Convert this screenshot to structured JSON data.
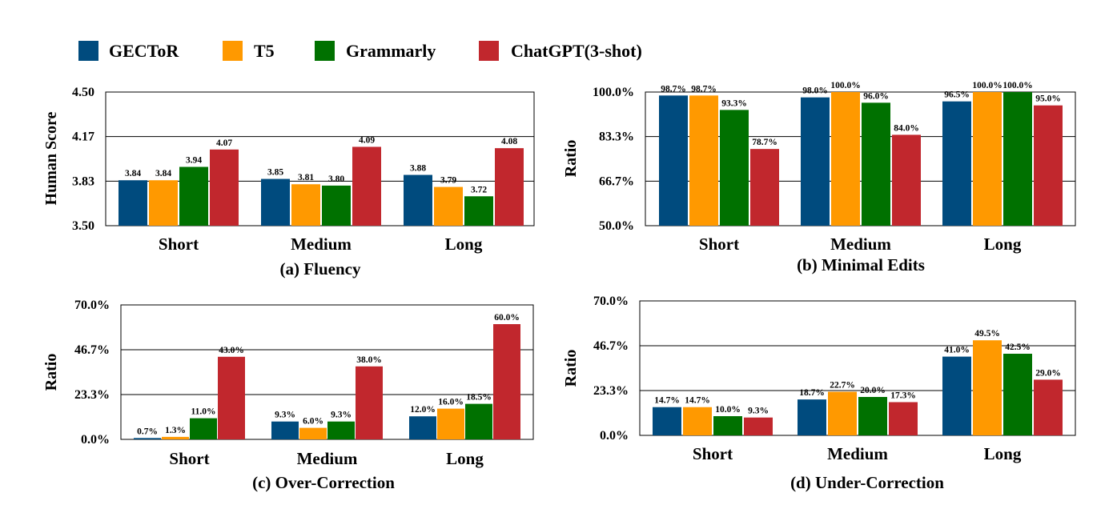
{
  "colors": {
    "GECToR": "#004b7e",
    "T5": "#ff9900",
    "Grammarly": "#007100",
    "ChatGPT(3-shot)": "#c1272d"
  },
  "legend": [
    "GECToR",
    "T5",
    "Grammarly",
    "ChatGPT(3-shot)"
  ],
  "chart_data": [
    {
      "type": "bar",
      "title": "(a) Fluency",
      "ylabel": "Human Score",
      "categories": [
        "Short",
        "Medium",
        "Long"
      ],
      "ylim": [
        3.5,
        4.5
      ],
      "yticks": [
        "3.50",
        "3.83",
        "4.17",
        "4.50"
      ],
      "grid": true,
      "series": [
        {
          "name": "GECToR",
          "values": [
            3.84,
            3.85,
            3.88
          ],
          "labels": [
            "3.84",
            "3.85",
            "3.88"
          ]
        },
        {
          "name": "T5",
          "values": [
            3.84,
            3.81,
            3.79
          ],
          "labels": [
            "3.84",
            "3.81",
            "3.79"
          ]
        },
        {
          "name": "Grammarly",
          "values": [
            3.94,
            3.8,
            3.72
          ],
          "labels": [
            "3.94",
            "3.80",
            "3.72"
          ]
        },
        {
          "name": "ChatGPT(3-shot)",
          "values": [
            4.07,
            4.09,
            4.08
          ],
          "labels": [
            "4.07",
            "4.09",
            "4.08"
          ]
        }
      ]
    },
    {
      "type": "bar",
      "title": "(b) Minimal Edits",
      "ylabel": "Ratio",
      "categories": [
        "Short",
        "Medium",
        "Long"
      ],
      "ylim": [
        50,
        100
      ],
      "yticks": [
        "50.0%",
        "66.7%",
        "83.3%",
        "100.0%"
      ],
      "grid": true,
      "series": [
        {
          "name": "GECToR",
          "values": [
            98.7,
            98.0,
            96.5
          ],
          "labels": [
            "98.7%",
            "98.0%",
            "96.5%"
          ]
        },
        {
          "name": "T5",
          "values": [
            98.7,
            100.0,
            100.0
          ],
          "labels": [
            "98.7%",
            "100.0%",
            "100.0%"
          ]
        },
        {
          "name": "Grammarly",
          "values": [
            93.3,
            96.0,
            100.0
          ],
          "labels": [
            "93.3%",
            "96.0%",
            "100.0%"
          ]
        },
        {
          "name": "ChatGPT(3-shot)",
          "values": [
            78.7,
            84.0,
            95.0
          ],
          "labels": [
            "78.7%",
            "84.0%",
            "95.0%"
          ]
        }
      ]
    },
    {
      "type": "bar",
      "title": "(c) Over-Correction",
      "ylabel": "Ratio",
      "categories": [
        "Short",
        "Medium",
        "Long"
      ],
      "ylim": [
        0,
        70
      ],
      "yticks": [
        "0.0%",
        "23.3%",
        "46.7%",
        "70.0%"
      ],
      "grid": true,
      "series": [
        {
          "name": "GECToR",
          "values": [
            0.7,
            9.3,
            12.0
          ],
          "labels": [
            "0.7%",
            "9.3%",
            "12.0%"
          ]
        },
        {
          "name": "T5",
          "values": [
            1.3,
            6.0,
            16.0
          ],
          "labels": [
            "1.3%",
            "6.0%",
            "16.0%"
          ]
        },
        {
          "name": "Grammarly",
          "values": [
            11.0,
            9.3,
            18.5
          ],
          "labels": [
            "11.0%",
            "9.3%",
            "18.5%"
          ]
        },
        {
          "name": "ChatGPT(3-shot)",
          "values": [
            43.0,
            38.0,
            60.0
          ],
          "labels": [
            "43.0%",
            "38.0%",
            "60.0%"
          ]
        }
      ]
    },
    {
      "type": "bar",
      "title": "(d) Under-Correction",
      "ylabel": "Ratio",
      "categories": [
        "Short",
        "Medium",
        "Long"
      ],
      "ylim": [
        0,
        70
      ],
      "yticks": [
        "0.0%",
        "23.3%",
        "46.7%",
        "70.0%"
      ],
      "grid": true,
      "series": [
        {
          "name": "GECToR",
          "values": [
            14.7,
            18.7,
            41.0
          ],
          "labels": [
            "14.7%",
            "18.7%",
            "41.0%"
          ]
        },
        {
          "name": "T5",
          "values": [
            14.7,
            22.7,
            49.5
          ],
          "labels": [
            "14.7%",
            "22.7%",
            "49.5%"
          ]
        },
        {
          "name": "Grammarly",
          "values": [
            10.0,
            20.0,
            42.5
          ],
          "labels": [
            "10.0%",
            "20.0%",
            "42.5%"
          ]
        },
        {
          "name": "ChatGPT(3-shot)",
          "values": [
            9.3,
            17.3,
            29.0
          ],
          "labels": [
            "9.3%",
            "17.3%",
            "29.0%"
          ]
        }
      ]
    }
  ]
}
